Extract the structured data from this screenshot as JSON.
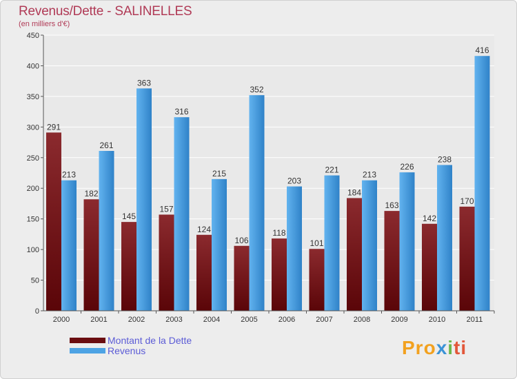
{
  "chart_data": {
    "type": "bar",
    "title": "Revenus/Dette - SALINELLES",
    "subtitle": "(en milliers d'€)",
    "categories": [
      "2000",
      "2001",
      "2002",
      "2003",
      "2004",
      "2005",
      "2006",
      "2007",
      "2008",
      "2009",
      "2010",
      "2011"
    ],
    "series": [
      {
        "name": "Montant de la Dette",
        "color": "#7a1418",
        "values": [
          291,
          182,
          145,
          157,
          124,
          106,
          118,
          101,
          184,
          163,
          142,
          170
        ]
      },
      {
        "name": "Revenus",
        "color": "#4da3e4",
        "values": [
          213,
          261,
          363,
          316,
          215,
          352,
          203,
          221,
          213,
          226,
          238,
          416
        ]
      }
    ],
    "ylim": [
      0,
      450
    ],
    "yticks": [
      "0",
      "50",
      "100",
      "150",
      "200",
      "250",
      "300",
      "350",
      "400",
      "450"
    ],
    "grid": true,
    "legend_position": "bottom-left"
  },
  "logo": {
    "part1": "Pro",
    "part2": "x",
    "part3": "i",
    "part4": "ti"
  }
}
